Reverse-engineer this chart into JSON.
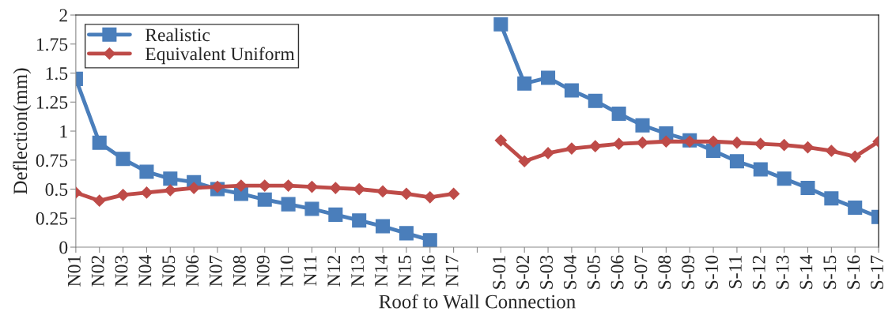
{
  "chart_data": {
    "type": "line",
    "xlabel": "Roof to Wall Connection",
    "ylabel": "Deflection(mm)",
    "categories": [
      "N01",
      "N02",
      "N03",
      "N04",
      "N05",
      "N06",
      "N07",
      "N08",
      "N09",
      "N10",
      "N11",
      "N12",
      "N13",
      "N14",
      "N15",
      "N16",
      "N17",
      null,
      "S-01",
      "S-02",
      "S-03",
      "S-04",
      "S-05",
      "S-06",
      "S-07",
      "S-08",
      "S-09",
      "S-10",
      "S-11",
      "S-12",
      "S-13",
      "S-14",
      "S-15",
      "S-16",
      "S-17"
    ],
    "series": [
      {
        "name": "Realistic",
        "color": "#4a7ebb",
        "marker": "square",
        "values": [
          1.45,
          0.9,
          0.76,
          0.65,
          0.59,
          0.56,
          0.5,
          0.46,
          0.41,
          0.37,
          0.33,
          0.28,
          0.23,
          0.18,
          0.12,
          0.06,
          null,
          null,
          1.92,
          1.41,
          1.46,
          1.35,
          1.26,
          1.15,
          1.05,
          0.98,
          0.92,
          0.83,
          0.74,
          0.67,
          0.59,
          0.51,
          0.42,
          0.34,
          0.26
        ]
      },
      {
        "name": "Equivalent Uniform",
        "color": "#be4b48",
        "marker": "diamond",
        "values": [
          0.47,
          0.4,
          0.45,
          0.47,
          0.49,
          0.51,
          0.52,
          0.53,
          0.53,
          0.53,
          0.52,
          0.51,
          0.5,
          0.48,
          0.46,
          0.43,
          0.46,
          null,
          0.92,
          0.74,
          0.81,
          0.85,
          0.87,
          0.89,
          0.9,
          0.91,
          0.91,
          0.91,
          0.9,
          0.89,
          0.88,
          0.86,
          0.83,
          0.78,
          0.91
        ]
      }
    ],
    "ylim": [
      0,
      2
    ],
    "yticks": [
      0,
      0.25,
      0.5,
      0.75,
      1,
      1.25,
      1.5,
      1.75,
      2
    ],
    "legend": "top left",
    "grid": false
  }
}
